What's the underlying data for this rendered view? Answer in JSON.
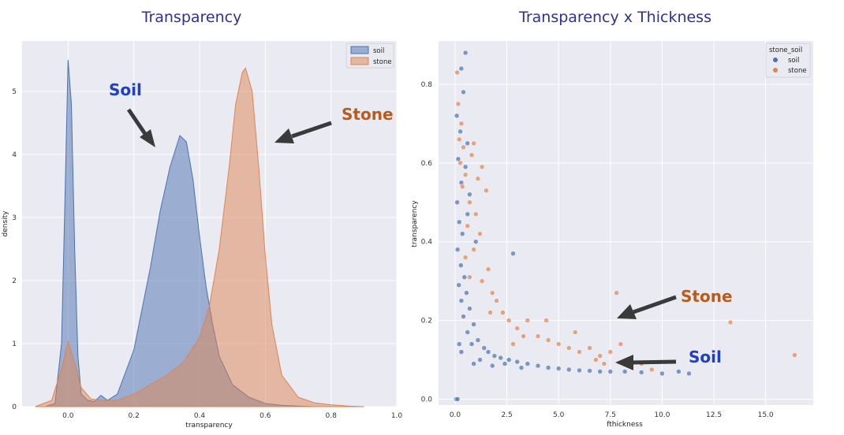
{
  "chart_data": [
    {
      "type": "area",
      "title": "Transparency",
      "xlabel": "transparency",
      "ylabel": "density",
      "xlim": [
        -0.14,
        1.0
      ],
      "ylim": [
        0,
        5.8
      ],
      "xticks": [
        "0.0",
        "0.2",
        "0.4",
        "0.6",
        "0.8",
        "1.0"
      ],
      "yticks": [
        "0",
        "1",
        "2",
        "3",
        "4",
        "5"
      ],
      "grid": true,
      "legend": "top-right",
      "series": [
        {
          "name": "soil",
          "color": "#4c72b0",
          "x": [
            -0.07,
            -0.04,
            -0.02,
            -0.01,
            0.0,
            0.01,
            0.02,
            0.03,
            0.04,
            0.06,
            0.08,
            0.1,
            0.12,
            0.15,
            0.2,
            0.25,
            0.28,
            0.31,
            0.34,
            0.36,
            0.38,
            0.4,
            0.42,
            0.44,
            0.46,
            0.5,
            0.55,
            0.6,
            0.65,
            0.7,
            0.75
          ],
          "y": [
            0.0,
            0.05,
            1.0,
            3.2,
            5.5,
            4.8,
            2.5,
            0.8,
            0.2,
            0.1,
            0.08,
            0.18,
            0.1,
            0.2,
            0.9,
            2.2,
            3.1,
            3.8,
            4.3,
            4.2,
            3.6,
            2.7,
            1.9,
            1.3,
            0.8,
            0.35,
            0.15,
            0.05,
            0.02,
            0.01,
            0.0
          ]
        },
        {
          "name": "stone",
          "color": "#dd8452",
          "x": [
            -0.1,
            -0.05,
            -0.02,
            0.0,
            0.02,
            0.04,
            0.07,
            0.1,
            0.15,
            0.2,
            0.25,
            0.3,
            0.35,
            0.4,
            0.43,
            0.46,
            0.49,
            0.51,
            0.53,
            0.54,
            0.56,
            0.58,
            0.6,
            0.62,
            0.65,
            0.7,
            0.75,
            0.8,
            0.85,
            0.9
          ],
          "y": [
            0.0,
            0.1,
            0.6,
            1.03,
            0.7,
            0.3,
            0.12,
            0.1,
            0.1,
            0.2,
            0.35,
            0.5,
            0.7,
            1.1,
            1.6,
            2.5,
            3.8,
            4.8,
            5.3,
            5.37,
            5.0,
            3.8,
            2.4,
            1.3,
            0.5,
            0.15,
            0.06,
            0.03,
            0.01,
            0.0
          ]
        }
      ],
      "annotations": [
        {
          "text": "Soil",
          "color": "#1f3fc4"
        },
        {
          "text": "Stone",
          "color": "#b85c1e"
        }
      ]
    },
    {
      "type": "scatter",
      "title": "Transparency x Thickness",
      "xlabel": "fthickness",
      "ylabel": "transparency",
      "xlim": [
        -0.8,
        17.3
      ],
      "ylim": [
        -0.015,
        0.91
      ],
      "xticks": [
        "0.0",
        "2.5",
        "5.0",
        "7.5",
        "10.0",
        "12.5",
        "15.0"
      ],
      "yticks": [
        "0.0",
        "0.2",
        "0.4",
        "0.6",
        "0.8"
      ],
      "grid": true,
      "legend": "top-right",
      "legend_title": "stone_soil",
      "series": [
        {
          "name": "soil",
          "color": "#4c72b0",
          "points": [
            [
              0.05,
              0.0
            ],
            [
              0.12,
              0.0
            ],
            [
              0.08,
              0.72
            ],
            [
              0.25,
              0.68
            ],
            [
              0.15,
              0.61
            ],
            [
              0.3,
              0.55
            ],
            [
              0.1,
              0.5
            ],
            [
              0.2,
              0.45
            ],
            [
              0.35,
              0.42
            ],
            [
              0.12,
              0.38
            ],
            [
              0.28,
              0.34
            ],
            [
              0.45,
              0.31
            ],
            [
              0.18,
              0.29
            ],
            [
              0.55,
              0.27
            ],
            [
              0.3,
              0.25
            ],
            [
              0.7,
              0.23
            ],
            [
              0.4,
              0.21
            ],
            [
              0.9,
              0.19
            ],
            [
              0.6,
              0.17
            ],
            [
              1.1,
              0.15
            ],
            [
              0.8,
              0.14
            ],
            [
              1.4,
              0.13
            ],
            [
              1.6,
              0.12
            ],
            [
              1.9,
              0.11
            ],
            [
              2.2,
              0.105
            ],
            [
              2.6,
              0.1
            ],
            [
              3.0,
              0.095
            ],
            [
              3.5,
              0.09
            ],
            [
              4.0,
              0.085
            ],
            [
              4.5,
              0.08
            ],
            [
              5.0,
              0.078
            ],
            [
              5.5,
              0.075
            ],
            [
              6.0,
              0.073
            ],
            [
              6.5,
              0.072
            ],
            [
              7.0,
              0.07
            ],
            [
              7.5,
              0.07
            ],
            [
              8.2,
              0.07
            ],
            [
              9.0,
              0.068
            ],
            [
              10.0,
              0.065
            ],
            [
              10.8,
              0.07
            ],
            [
              11.3,
              0.065
            ],
            [
              2.8,
              0.37
            ],
            [
              0.5,
              0.88
            ],
            [
              0.3,
              0.84
            ],
            [
              0.4,
              0.78
            ],
            [
              0.6,
              0.65
            ],
            [
              0.5,
              0.59
            ],
            [
              0.7,
              0.52
            ],
            [
              0.6,
              0.47
            ],
            [
              1.0,
              0.4
            ],
            [
              0.3,
              0.12
            ],
            [
              0.2,
              0.14
            ],
            [
              1.2,
              0.1
            ],
            [
              0.9,
              0.09
            ],
            [
              1.8,
              0.085
            ],
            [
              2.4,
              0.09
            ],
            [
              3.2,
              0.08
            ]
          ]
        },
        {
          "name": "stone",
          "color": "#dd8452",
          "points": [
            [
              0.1,
              0.83
            ],
            [
              0.15,
              0.75
            ],
            [
              0.3,
              0.7
            ],
            [
              0.2,
              0.66
            ],
            [
              0.4,
              0.64
            ],
            [
              0.25,
              0.6
            ],
            [
              0.5,
              0.57
            ],
            [
              0.35,
              0.54
            ],
            [
              0.8,
              0.62
            ],
            [
              0.9,
              0.65
            ],
            [
              1.3,
              0.59
            ],
            [
              1.1,
              0.56
            ],
            [
              1.5,
              0.53
            ],
            [
              0.7,
              0.5
            ],
            [
              1.0,
              0.47
            ],
            [
              0.6,
              0.44
            ],
            [
              1.2,
              0.42
            ],
            [
              0.9,
              0.38
            ],
            [
              1.6,
              0.33
            ],
            [
              1.3,
              0.3
            ],
            [
              1.8,
              0.27
            ],
            [
              2.0,
              0.25
            ],
            [
              2.3,
              0.22
            ],
            [
              2.6,
              0.2
            ],
            [
              3.0,
              0.18
            ],
            [
              3.5,
              0.2
            ],
            [
              4.0,
              0.16
            ],
            [
              4.5,
              0.15
            ],
            [
              5.0,
              0.14
            ],
            [
              5.5,
              0.13
            ],
            [
              6.0,
              0.12
            ],
            [
              6.5,
              0.13
            ],
            [
              7.0,
              0.11
            ],
            [
              7.5,
              0.12
            ],
            [
              7.8,
              0.27
            ],
            [
              8.0,
              0.14
            ],
            [
              8.5,
              0.1
            ],
            [
              9.0,
              0.09
            ],
            [
              9.5,
              0.075
            ],
            [
              13.3,
              0.195
            ],
            [
              16.4,
              0.112
            ],
            [
              4.4,
              0.2
            ],
            [
              3.3,
              0.16
            ],
            [
              2.8,
              0.14
            ],
            [
              5.8,
              0.17
            ],
            [
              6.8,
              0.1
            ],
            [
              7.2,
              0.09
            ],
            [
              1.7,
              0.22
            ],
            [
              0.5,
              0.36
            ],
            [
              0.7,
              0.31
            ]
          ]
        }
      ],
      "annotations": [
        {
          "text": "Stone",
          "color": "#b85c1e"
        },
        {
          "text": "Soil",
          "color": "#1f3fc4"
        }
      ]
    }
  ]
}
